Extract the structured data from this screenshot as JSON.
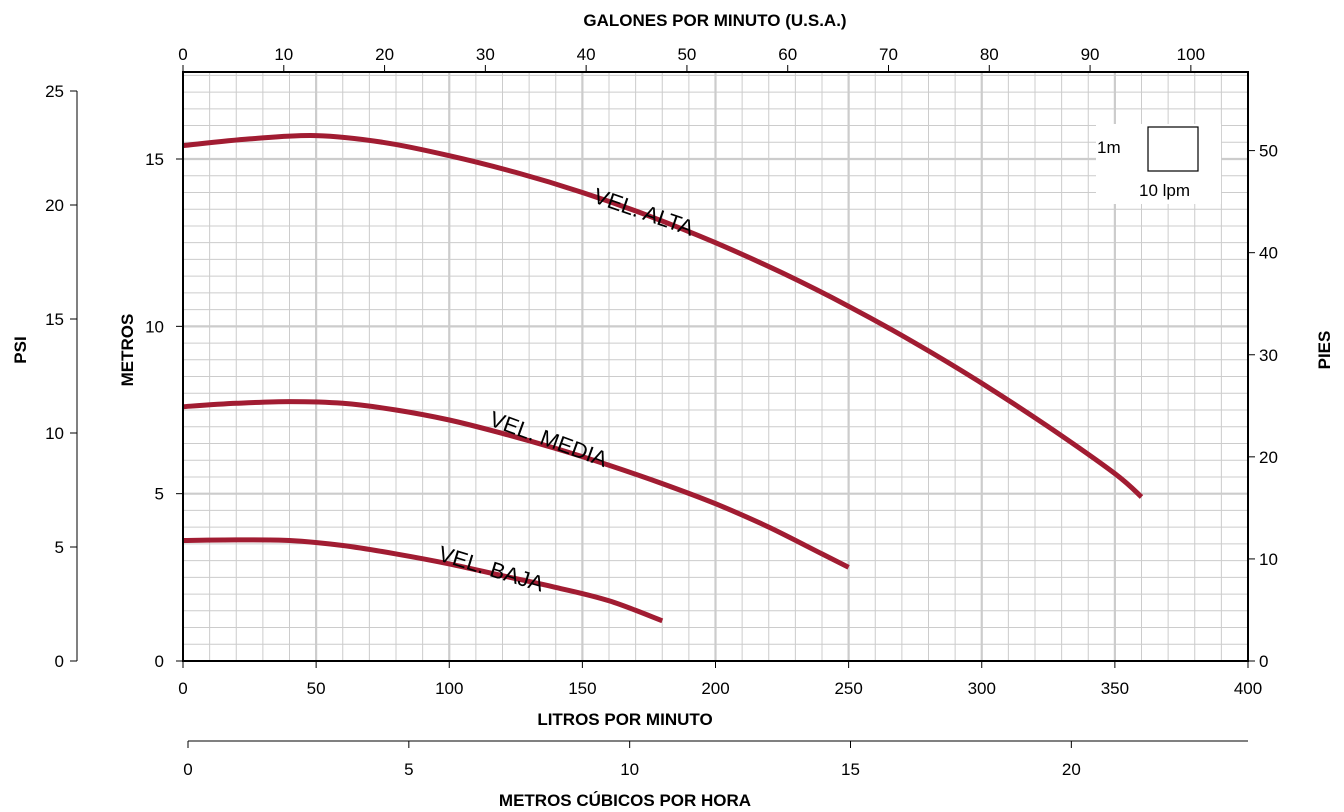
{
  "chart_data": {
    "type": "line",
    "x": [
      0,
      20,
      40,
      60,
      80,
      100,
      120,
      140,
      160,
      180,
      200,
      220,
      240,
      250,
      260,
      280,
      300,
      320,
      340,
      360
    ],
    "series": [
      {
        "name": "VEL. ALTA",
        "color": "#a11c32",
        "points": [
          [
            0,
            15.4
          ],
          [
            25,
            15.6
          ],
          [
            50,
            15.7
          ],
          [
            75,
            15.5
          ],
          [
            100,
            15.1
          ],
          [
            125,
            14.6
          ],
          [
            150,
            14.0
          ],
          [
            175,
            13.3
          ],
          [
            200,
            12.5
          ],
          [
            225,
            11.6
          ],
          [
            250,
            10.6
          ],
          [
            275,
            9.5
          ],
          [
            300,
            8.3
          ],
          [
            325,
            7.0
          ],
          [
            350,
            5.6
          ],
          [
            360,
            4.9
          ]
        ]
      },
      {
        "name": "VEL. MEDIA",
        "color": "#a11c32",
        "points": [
          [
            0,
            7.6
          ],
          [
            20,
            7.7
          ],
          [
            40,
            7.75
          ],
          [
            60,
            7.7
          ],
          [
            80,
            7.5
          ],
          [
            100,
            7.2
          ],
          [
            120,
            6.8
          ],
          [
            140,
            6.35
          ],
          [
            160,
            5.85
          ],
          [
            180,
            5.3
          ],
          [
            200,
            4.7
          ],
          [
            220,
            4.0
          ],
          [
            240,
            3.2
          ],
          [
            250,
            2.8
          ]
        ]
      },
      {
        "name": "VEL. BAJA",
        "color": "#a11c32",
        "points": [
          [
            0,
            3.6
          ],
          [
            20,
            3.62
          ],
          [
            40,
            3.6
          ],
          [
            60,
            3.45
          ],
          [
            80,
            3.2
          ],
          [
            100,
            2.9
          ],
          [
            120,
            2.55
          ],
          [
            140,
            2.2
          ],
          [
            160,
            1.8
          ],
          [
            180,
            1.2
          ]
        ]
      }
    ],
    "bottom_axis": {
      "title": "LITROS POR MINUTO",
      "range": [
        0,
        400
      ],
      "ticks": [
        "0",
        "50",
        "100",
        "150",
        "200",
        "250",
        "300",
        "350",
        "400"
      ]
    },
    "top_axis": {
      "title": "GALONES POR MINUTO (U.S.A.)",
      "range": [
        0,
        105.67
      ],
      "ticks": [
        "0",
        "10",
        "20",
        "30",
        "40",
        "50",
        "60",
        "70",
        "80",
        "90",
        "100"
      ]
    },
    "left_axis": {
      "title": "METROS",
      "range": [
        0,
        17.6
      ],
      "ticks": [
        "0",
        "5",
        "10",
        "15"
      ]
    },
    "psi_axis": {
      "title": "PSI",
      "range": [
        0,
        25.0
      ],
      "ticks": [
        "0",
        "5",
        "10",
        "15",
        "20",
        "25"
      ]
    },
    "right_axis": {
      "title": "PIES",
      "range": [
        0,
        57.7
      ],
      "ticks": [
        "0",
        "10",
        "20",
        "30",
        "40",
        "50"
      ]
    },
    "m3h_axis": {
      "title": "METROS CÚBICOS POR HORA",
      "range": [
        0,
        24.0
      ],
      "ticks": [
        "0",
        "5",
        "10",
        "15",
        "20"
      ]
    },
    "grid": true,
    "scale_box": {
      "height_label": "1m",
      "width_label": "10 lpm"
    }
  },
  "colors": {
    "curve": "#a11c32",
    "grid": "#cccccc",
    "axis": "#000000"
  }
}
